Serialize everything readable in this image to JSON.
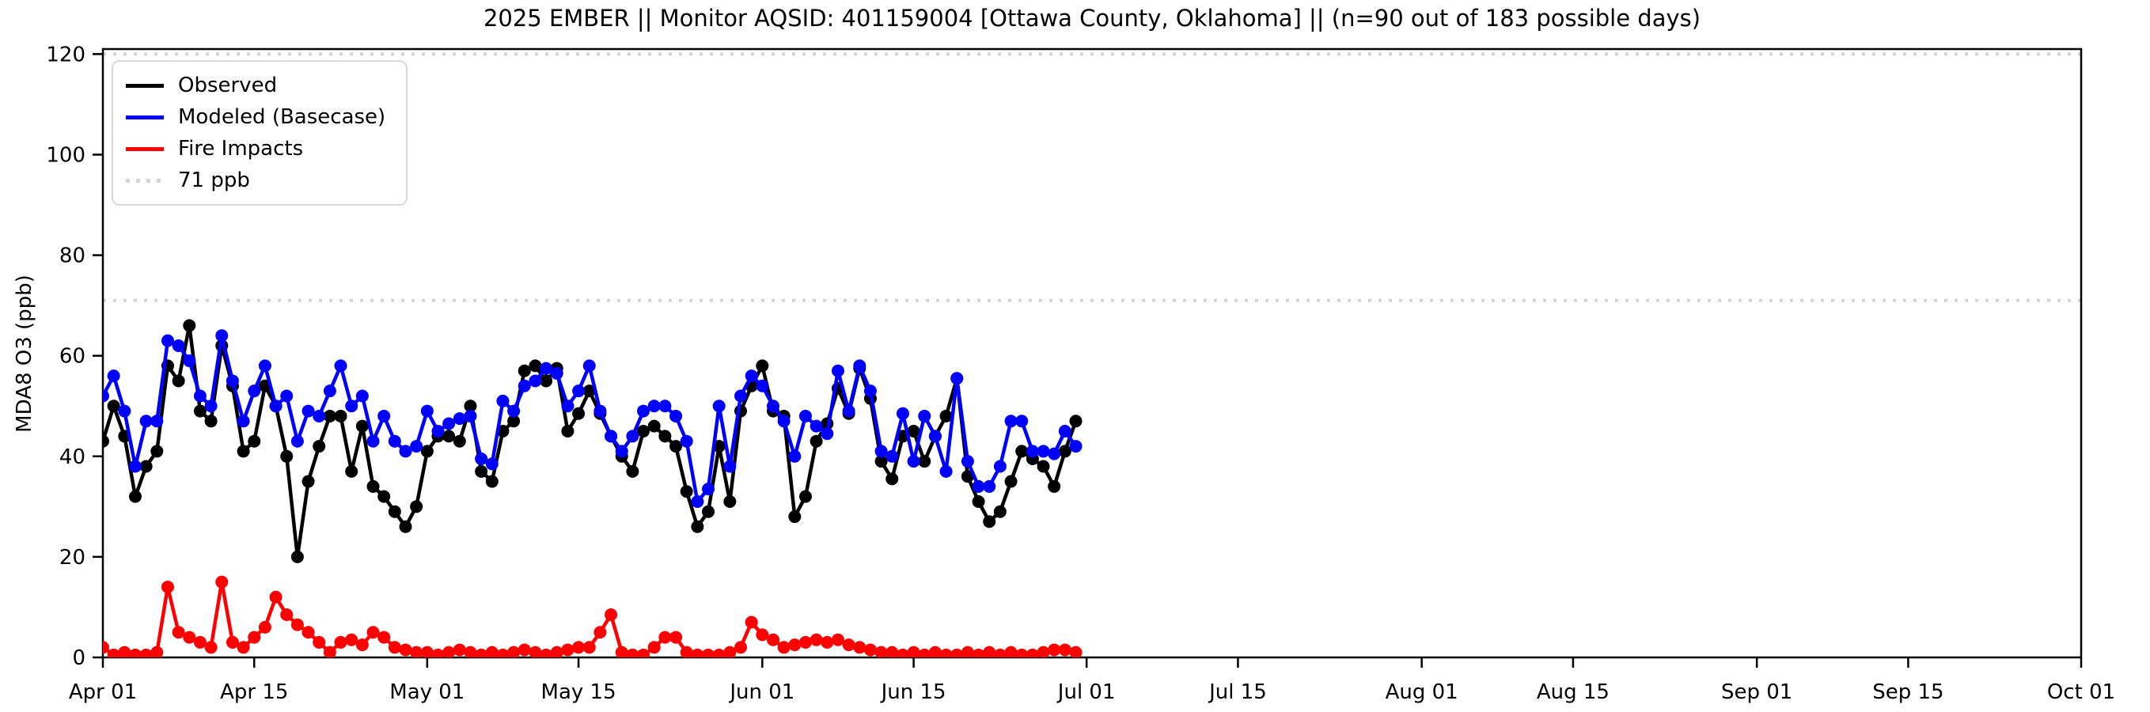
{
  "chart_data": {
    "type": "line",
    "title": "2025 EMBER || Monitor AQSID: 401159004 [Ottawa County, Oklahoma] || (n=90 out of 183 possible days)",
    "ylabel": "MDA8 O3 (ppb)",
    "ylim": [
      0,
      121
    ],
    "yticks": [
      0,
      20,
      40,
      60,
      80,
      100,
      120
    ],
    "x_range_days": 183,
    "xticks": [
      {
        "label": "Apr 01",
        "day": 0
      },
      {
        "label": "Apr 15",
        "day": 14
      },
      {
        "label": "May 01",
        "day": 30
      },
      {
        "label": "May 15",
        "day": 44
      },
      {
        "label": "Jun 01",
        "day": 61
      },
      {
        "label": "Jun 15",
        "day": 75
      },
      {
        "label": "Jul 01",
        "day": 91
      },
      {
        "label": "Jul 15",
        "day": 105
      },
      {
        "label": "Aug 01",
        "day": 122
      },
      {
        "label": "Aug 15",
        "day": 136
      },
      {
        "label": "Sep 01",
        "day": 153
      },
      {
        "label": "Sep 15",
        "day": 167
      },
      {
        "label": "Oct 01",
        "day": 183
      }
    ],
    "grid": false,
    "legend_position": "upper left",
    "dates": [
      "Apr 01",
      "Apr 02",
      "Apr 03",
      "Apr 04",
      "Apr 05",
      "Apr 06",
      "Apr 07",
      "Apr 08",
      "Apr 09",
      "Apr 10",
      "Apr 11",
      "Apr 12",
      "Apr 13",
      "Apr 14",
      "Apr 15",
      "Apr 16",
      "Apr 17",
      "Apr 18",
      "Apr 19",
      "Apr 20",
      "Apr 21",
      "Apr 22",
      "Apr 23",
      "Apr 24",
      "Apr 25",
      "Apr 26",
      "Apr 27",
      "Apr 28",
      "Apr 29",
      "Apr 30",
      "May 01",
      "May 02",
      "May 03",
      "May 04",
      "May 05",
      "May 06",
      "May 07",
      "May 08",
      "May 09",
      "May 10",
      "May 11",
      "May 12",
      "May 13",
      "May 14",
      "May 15",
      "May 16",
      "May 17",
      "May 18",
      "May 19",
      "May 20",
      "May 21",
      "May 22",
      "May 23",
      "May 24",
      "May 25",
      "May 26",
      "May 27",
      "May 28",
      "May 29",
      "May 30",
      "May 31",
      "Jun 01",
      "Jun 02",
      "Jun 03",
      "Jun 04",
      "Jun 05",
      "Jun 06",
      "Jun 07",
      "Jun 08",
      "Jun 09",
      "Jun 10",
      "Jun 11",
      "Jun 12",
      "Jun 13",
      "Jun 14",
      "Jun 15",
      "Jun 16",
      "Jun 17",
      "Jun 18",
      "Jun 19",
      "Jun 20",
      "Jun 21",
      "Jun 22",
      "Jun 23",
      "Jun 24",
      "Jun 25",
      "Jun 26",
      "Jun 27",
      "Jun 28",
      "Jun 29",
      "Jun 30"
    ],
    "series": [
      {
        "name": "Observed",
        "color": "#000000",
        "values": [
          43,
          50,
          44,
          32,
          38,
          41,
          58,
          55,
          66,
          49,
          47,
          62,
          54,
          41,
          43,
          54,
          50,
          40,
          20,
          35,
          42,
          48,
          48,
          37,
          46,
          34,
          32,
          29,
          26,
          30,
          41,
          44,
          44,
          43,
          50,
          37,
          35,
          45,
          47,
          57,
          58,
          55,
          57.5,
          45,
          48.5,
          53,
          48.5,
          44,
          40,
          37,
          45,
          46,
          44,
          42,
          33,
          26,
          29,
          42,
          31,
          49,
          54,
          58,
          49,
          48,
          28,
          32,
          43,
          46.5,
          53.5,
          48.5,
          57.5,
          51.5,
          39,
          35.5,
          44,
          45,
          39,
          44,
          48,
          55.5,
          36,
          31,
          27,
          29,
          35,
          41,
          39.5,
          38,
          34,
          41,
          47
        ]
      },
      {
        "name": "Modeled (Basecase)",
        "color": "#0000ff",
        "values": [
          52,
          56,
          49,
          38,
          47,
          47,
          63,
          62,
          59,
          52,
          50,
          64,
          55,
          47,
          53,
          58,
          50,
          52,
          43,
          49,
          48,
          53,
          58,
          50,
          52,
          43,
          48,
          43,
          41,
          42,
          49,
          45,
          46.5,
          47.5,
          48,
          39.5,
          38.5,
          51,
          49,
          54,
          55,
          57.5,
          56.5,
          50,
          53,
          58,
          49,
          44,
          41,
          44,
          49,
          50,
          50,
          48,
          43,
          31,
          33.5,
          50,
          38,
          52,
          56,
          54,
          50,
          47,
          40,
          48,
          46,
          44.5,
          57,
          49,
          58,
          53,
          41,
          40,
          48.5,
          39,
          48,
          44,
          37,
          55.5,
          39,
          34,
          34,
          38,
          47,
          47,
          41,
          41,
          40.5,
          45,
          42
        ]
      },
      {
        "name": "Fire Impacts",
        "color": "#ff0000",
        "values": [
          2,
          0.5,
          1,
          0.5,
          0.5,
          1,
          14,
          5,
          4,
          3,
          2,
          15,
          3,
          2,
          4,
          6,
          12,
          8.5,
          6.5,
          5,
          3,
          1,
          3,
          3.5,
          2.5,
          5,
          4,
          2,
          1.5,
          1,
          1,
          0.5,
          1,
          1.5,
          1,
          0.5,
          1,
          0.5,
          1,
          1.5,
          1,
          0.5,
          1,
          1.5,
          2,
          2,
          5,
          8.5,
          1,
          0.5,
          0.5,
          2,
          4,
          4,
          1,
          0.5,
          0.5,
          0.5,
          1,
          2,
          7,
          4.5,
          3.5,
          2,
          2.5,
          3,
          3.5,
          3,
          3.5,
          2.5,
          2,
          1.5,
          1,
          1,
          0.5,
          1,
          0.5,
          1,
          0.5,
          0.5,
          1,
          0.5,
          1,
          0.5,
          1,
          0.5,
          0.5,
          1,
          1.5,
          1.5,
          1
        ]
      }
    ],
    "reference_lines": [
      {
        "label": "71 ppb",
        "value": 71,
        "color": "#d4d4d4",
        "style": "dotted"
      },
      {
        "label": "",
        "value": 120,
        "color": "#d4d4d4",
        "style": "dotted"
      }
    ]
  }
}
